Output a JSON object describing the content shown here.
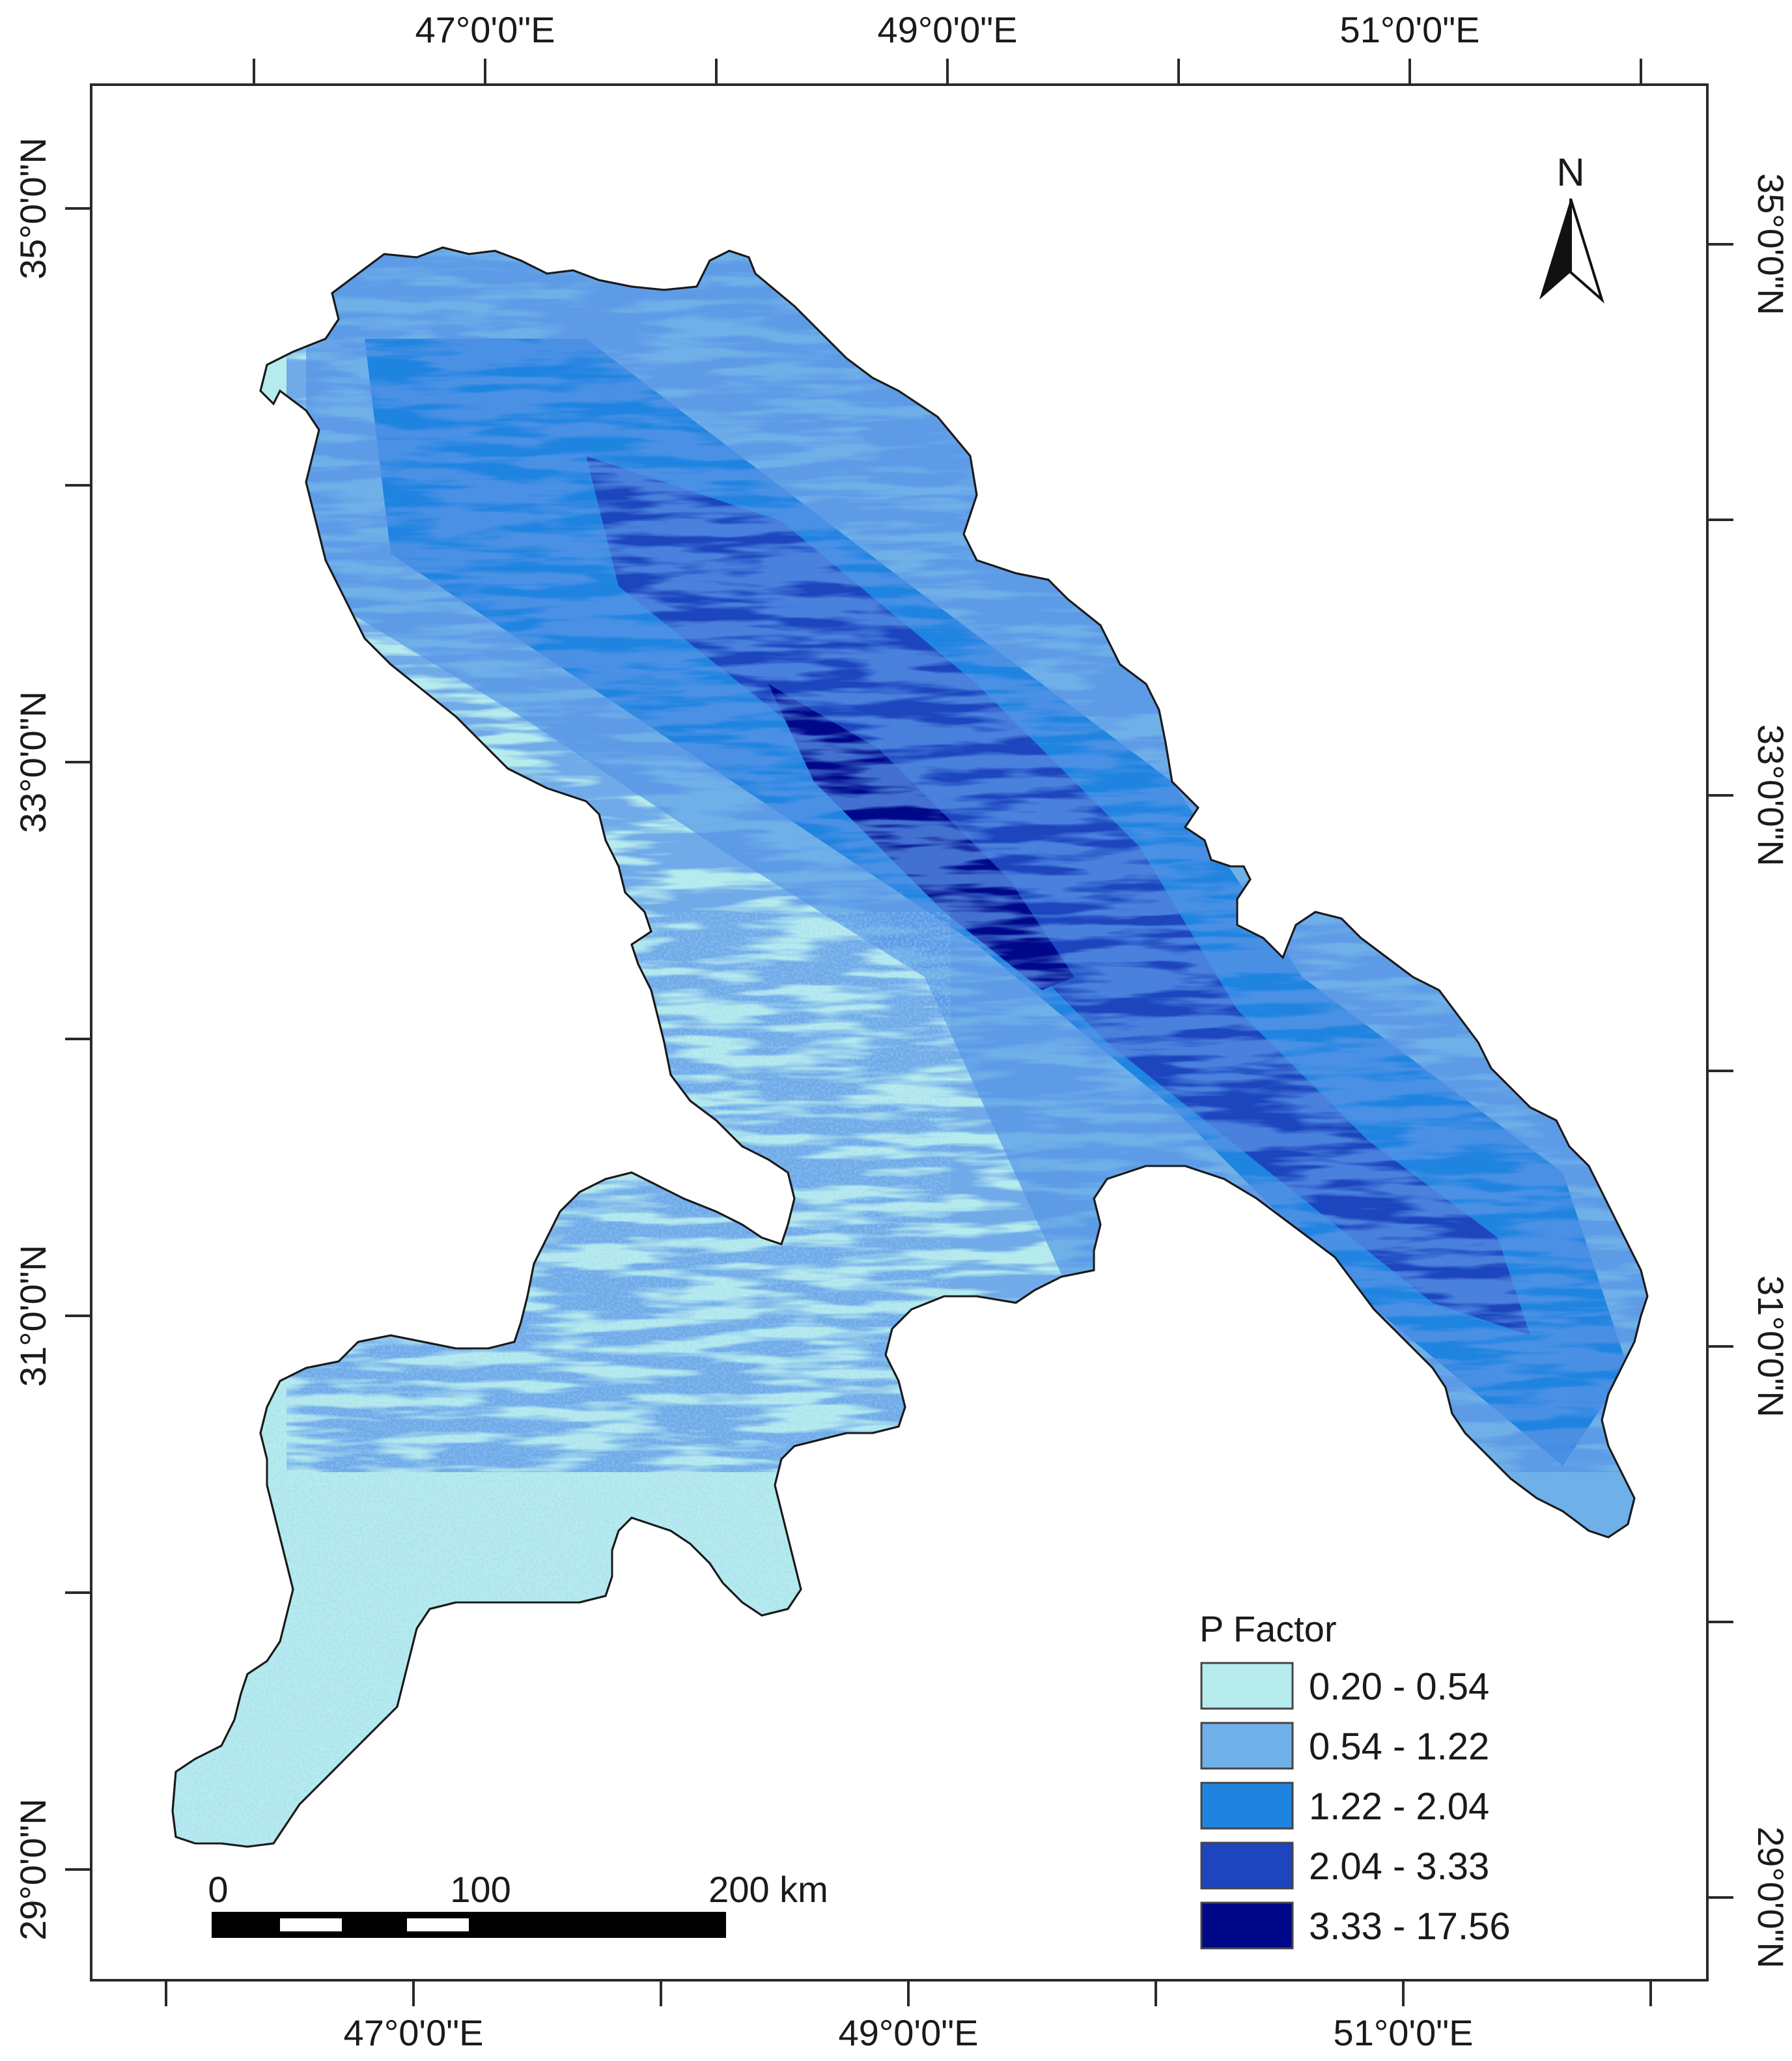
{
  "map": {
    "top_axis": [
      "47°0'0\"E",
      "49°0'0\"E",
      "51°0'0\"E"
    ],
    "bottom_axis": [
      "47°0'0\"E",
      "49°0'0\"E",
      "51°0'0\"E"
    ],
    "left_axis": [
      "35°0'0\"N",
      "33°0'0\"N",
      "31°0'0\"N",
      "29°0'0\"N"
    ],
    "right_axis": [
      "35°0'0\"N",
      "33°0'0\"N",
      "31°0'0\"N",
      "29°0'0\"N"
    ],
    "north_arrow": {
      "letter": "N",
      "icon": "north-arrow-icon"
    },
    "scale_bar": {
      "labels": [
        "0",
        "100",
        "200 km"
      ]
    },
    "legend": {
      "title": "P Factor",
      "classes": [
        {
          "label": "0.20 - 0.54",
          "color": "#b6ebee"
        },
        {
          "label": "0.54 - 1.22",
          "color": "#6fb0e8"
        },
        {
          "label": "1.22 - 2.04",
          "color": "#1f84e0"
        },
        {
          "label": "2.04 - 3.33",
          "color": "#1c45be"
        },
        {
          "label": "3.33 - 17.56",
          "color": "#00088a"
        }
      ]
    }
  }
}
